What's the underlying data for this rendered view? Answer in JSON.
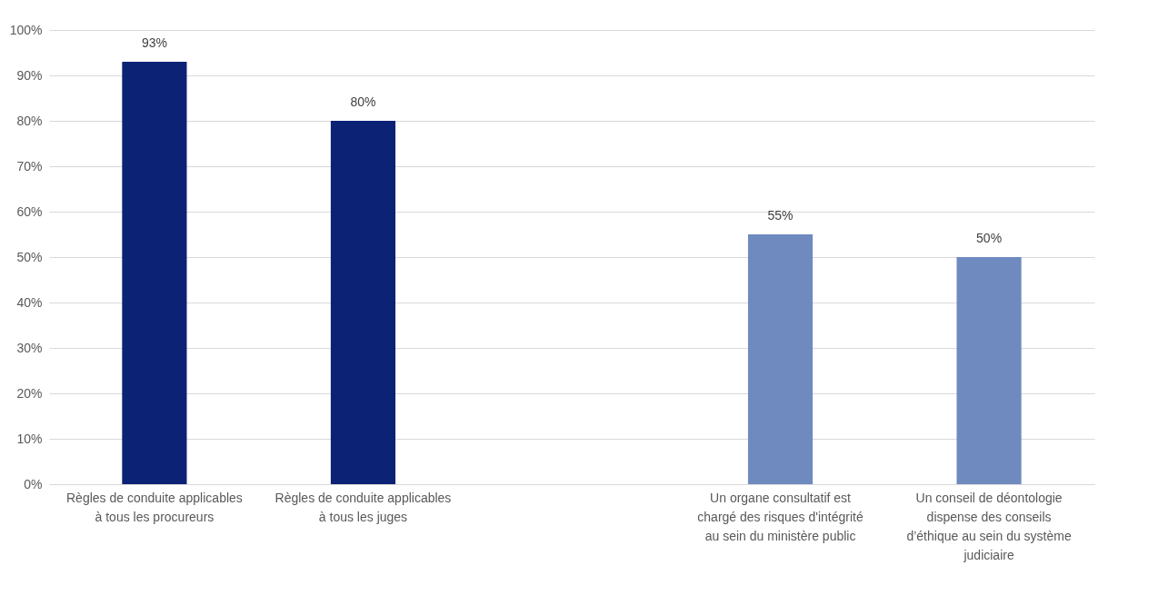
{
  "chart_data": {
    "type": "bar",
    "categories": [
      "Règles de conduite applicables à tous les procureurs",
      "Règles de conduite applicables à tous les juges",
      null,
      "Un organe consultatif est chargé des risques d'intégrité au sein du ministère public",
      "Un conseil de déontologie dispense des conseils d’éthique au sein du système judiciaire"
    ],
    "values": [
      93,
      80,
      null,
      55,
      50
    ],
    "colors": [
      "#0b2275",
      "#0b2275",
      "#0b2275",
      "#6e8abf",
      "#6e8abf"
    ],
    "value_labels": [
      "93%",
      "80%",
      null,
      "55%",
      "50%"
    ],
    "ylim": [
      0,
      100
    ],
    "yticks": [
      {
        "value": 0,
        "label": "0%"
      },
      {
        "value": 10,
        "label": "10%"
      },
      {
        "value": 20,
        "label": "20%"
      },
      {
        "value": 30,
        "label": "30%"
      },
      {
        "value": 40,
        "label": "40%"
      },
      {
        "value": 50,
        "label": "50%"
      },
      {
        "value": 60,
        "label": "60%"
      },
      {
        "value": 70,
        "label": "70%"
      },
      {
        "value": 80,
        "label": "80%"
      },
      {
        "value": 90,
        "label": "90%"
      },
      {
        "value": 100,
        "label": "100%"
      }
    ],
    "grid": "y"
  }
}
